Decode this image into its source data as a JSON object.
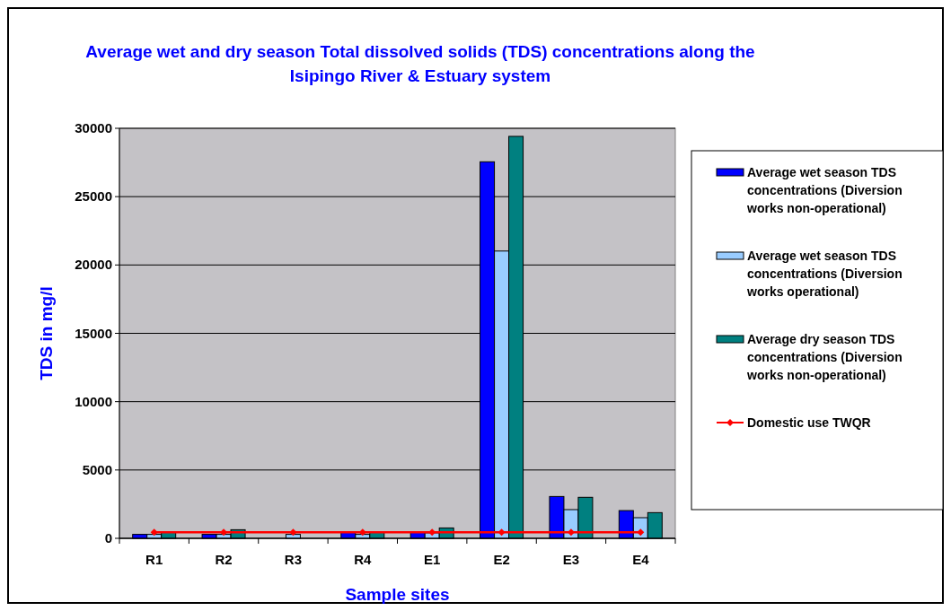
{
  "chart_data": {
    "type": "bar",
    "title": "Average wet and dry season Total dissolved solids (TDS) concentrations along the Isipingo River & Estuary system",
    "xlabel": "Sample sites",
    "ylabel": "TDS in mg/l",
    "categories": [
      "R1",
      "R2",
      "R3",
      "R4",
      "E1",
      "E2",
      "E3",
      "E4"
    ],
    "ylim": [
      0,
      30000
    ],
    "yticks": [
      0,
      5000,
      10000,
      15000,
      20000,
      25000,
      30000
    ],
    "grid": "y",
    "legend": "right",
    "series": [
      {
        "name": "Average wet season TDS concentrations (Diversion works non-operational)",
        "color": "#0000ff",
        "values": [
          290,
          290,
          null,
          450,
          450,
          27550,
          3060,
          2030
        ]
      },
      {
        "name": "Average wet season TDS concentrations (Diversion works operational)",
        "color": "#99ccff",
        "values": [
          290,
          290,
          290,
          290,
          400,
          21020,
          2100,
          1510
        ]
      },
      {
        "name": "Average dry season TDS concentrations (Diversion works non-operational)",
        "color": "#008080",
        "values": [
          450,
          630,
          null,
          450,
          760,
          29410,
          3000,
          1880
        ]
      },
      {
        "name": "Domestic use TWQR",
        "type": "line",
        "color": "#ff0000",
        "marker": "diamond",
        "values": [
          450,
          450,
          450,
          450,
          450,
          450,
          450,
          450
        ]
      }
    ]
  }
}
